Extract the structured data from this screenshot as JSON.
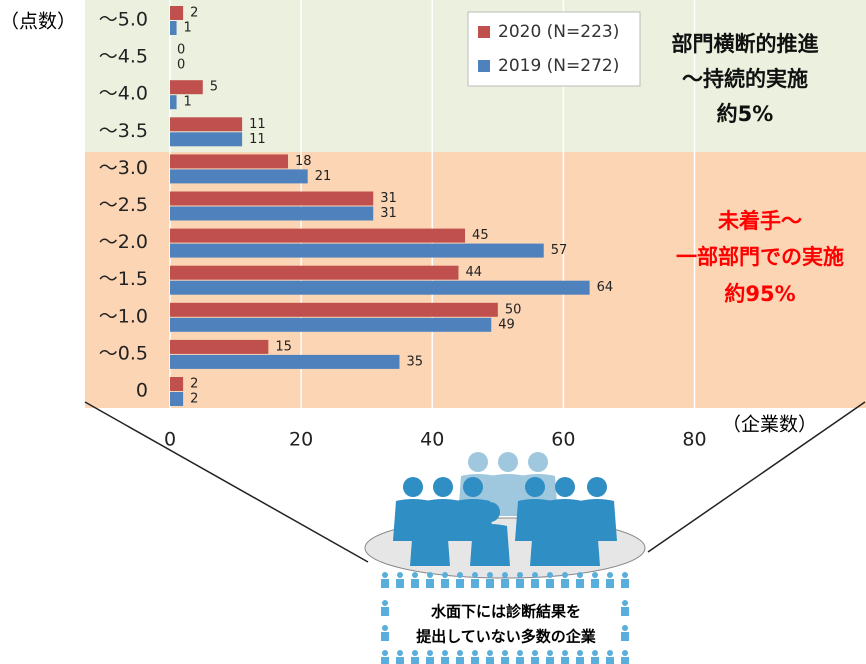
{
  "chart_data": {
    "type": "bar",
    "orientation": "horizontal",
    "y_axis_label": "（点数）",
    "x_axis_label": "（企業数）",
    "categories": [
      "～5.0",
      "～4.5",
      "～4.0",
      "～3.5",
      "～3.0",
      "～2.5",
      "～2.0",
      "～1.5",
      "～1.0",
      "～0.5",
      "0"
    ],
    "series": [
      {
        "name": "2020 (N=223)",
        "color": "#c0504d",
        "values": [
          2,
          0,
          5,
          11,
          18,
          31,
          45,
          44,
          50,
          15,
          2
        ]
      },
      {
        "name": "2019 (N=272)",
        "color": "#4f81bd",
        "values": [
          1,
          0,
          1,
          11,
          21,
          31,
          57,
          64,
          49,
          35,
          2
        ]
      }
    ],
    "xlim": [
      0,
      106
    ],
    "xticks": [
      0,
      20,
      40,
      60,
      80
    ],
    "grid": true,
    "legend": "upper right",
    "annotations": [
      "部門横断的推進",
      "～持続的実施",
      "約5%",
      "未着手～",
      "一部部門での実施",
      "約95%"
    ],
    "illustration_text": [
      "水面下には診断結果を",
      "提出していない多数の企業"
    ]
  }
}
